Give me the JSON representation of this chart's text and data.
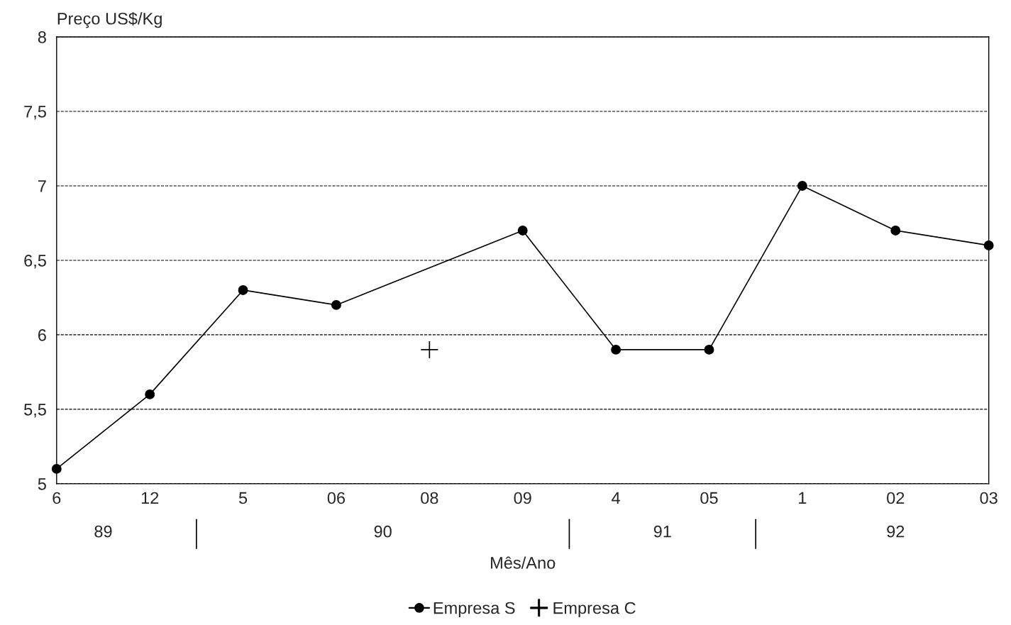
{
  "chart_data": {
    "type": "line",
    "xlabel": "Mês/Ano",
    "ylabel": "Preço US$/Kg",
    "categories": [
      "6",
      "12",
      "5",
      "06",
      "08",
      "09",
      "4",
      "05",
      "1",
      "02",
      "03"
    ],
    "annotations": [
      "89",
      "90",
      "91",
      "92"
    ],
    "series": [
      {
        "name": "Empresa S",
        "marker": "circle",
        "color": "#000000",
        "values": [
          5.1,
          5.6,
          6.3,
          6.2,
          null,
          6.7,
          5.9,
          5.9,
          7.0,
          6.7,
          6.6
        ]
      },
      {
        "name": "Empresa C",
        "type": "scatter",
        "marker": "cross",
        "color": "#000000",
        "values": [
          null,
          null,
          null,
          null,
          5.9,
          null,
          null,
          null,
          null,
          null,
          null
        ]
      }
    ],
    "ylim": [
      5,
      8
    ],
    "yticks": [
      5,
      {
        "value": 5.5,
        "label": "5,5"
      },
      6,
      {
        "value": 6.5,
        "label": "6,5"
      },
      7,
      {
        "value": 7.5,
        "label": "7,5"
      },
      8
    ],
    "grid": "y",
    "line_style": "solid",
    "legend": "bottom"
  }
}
